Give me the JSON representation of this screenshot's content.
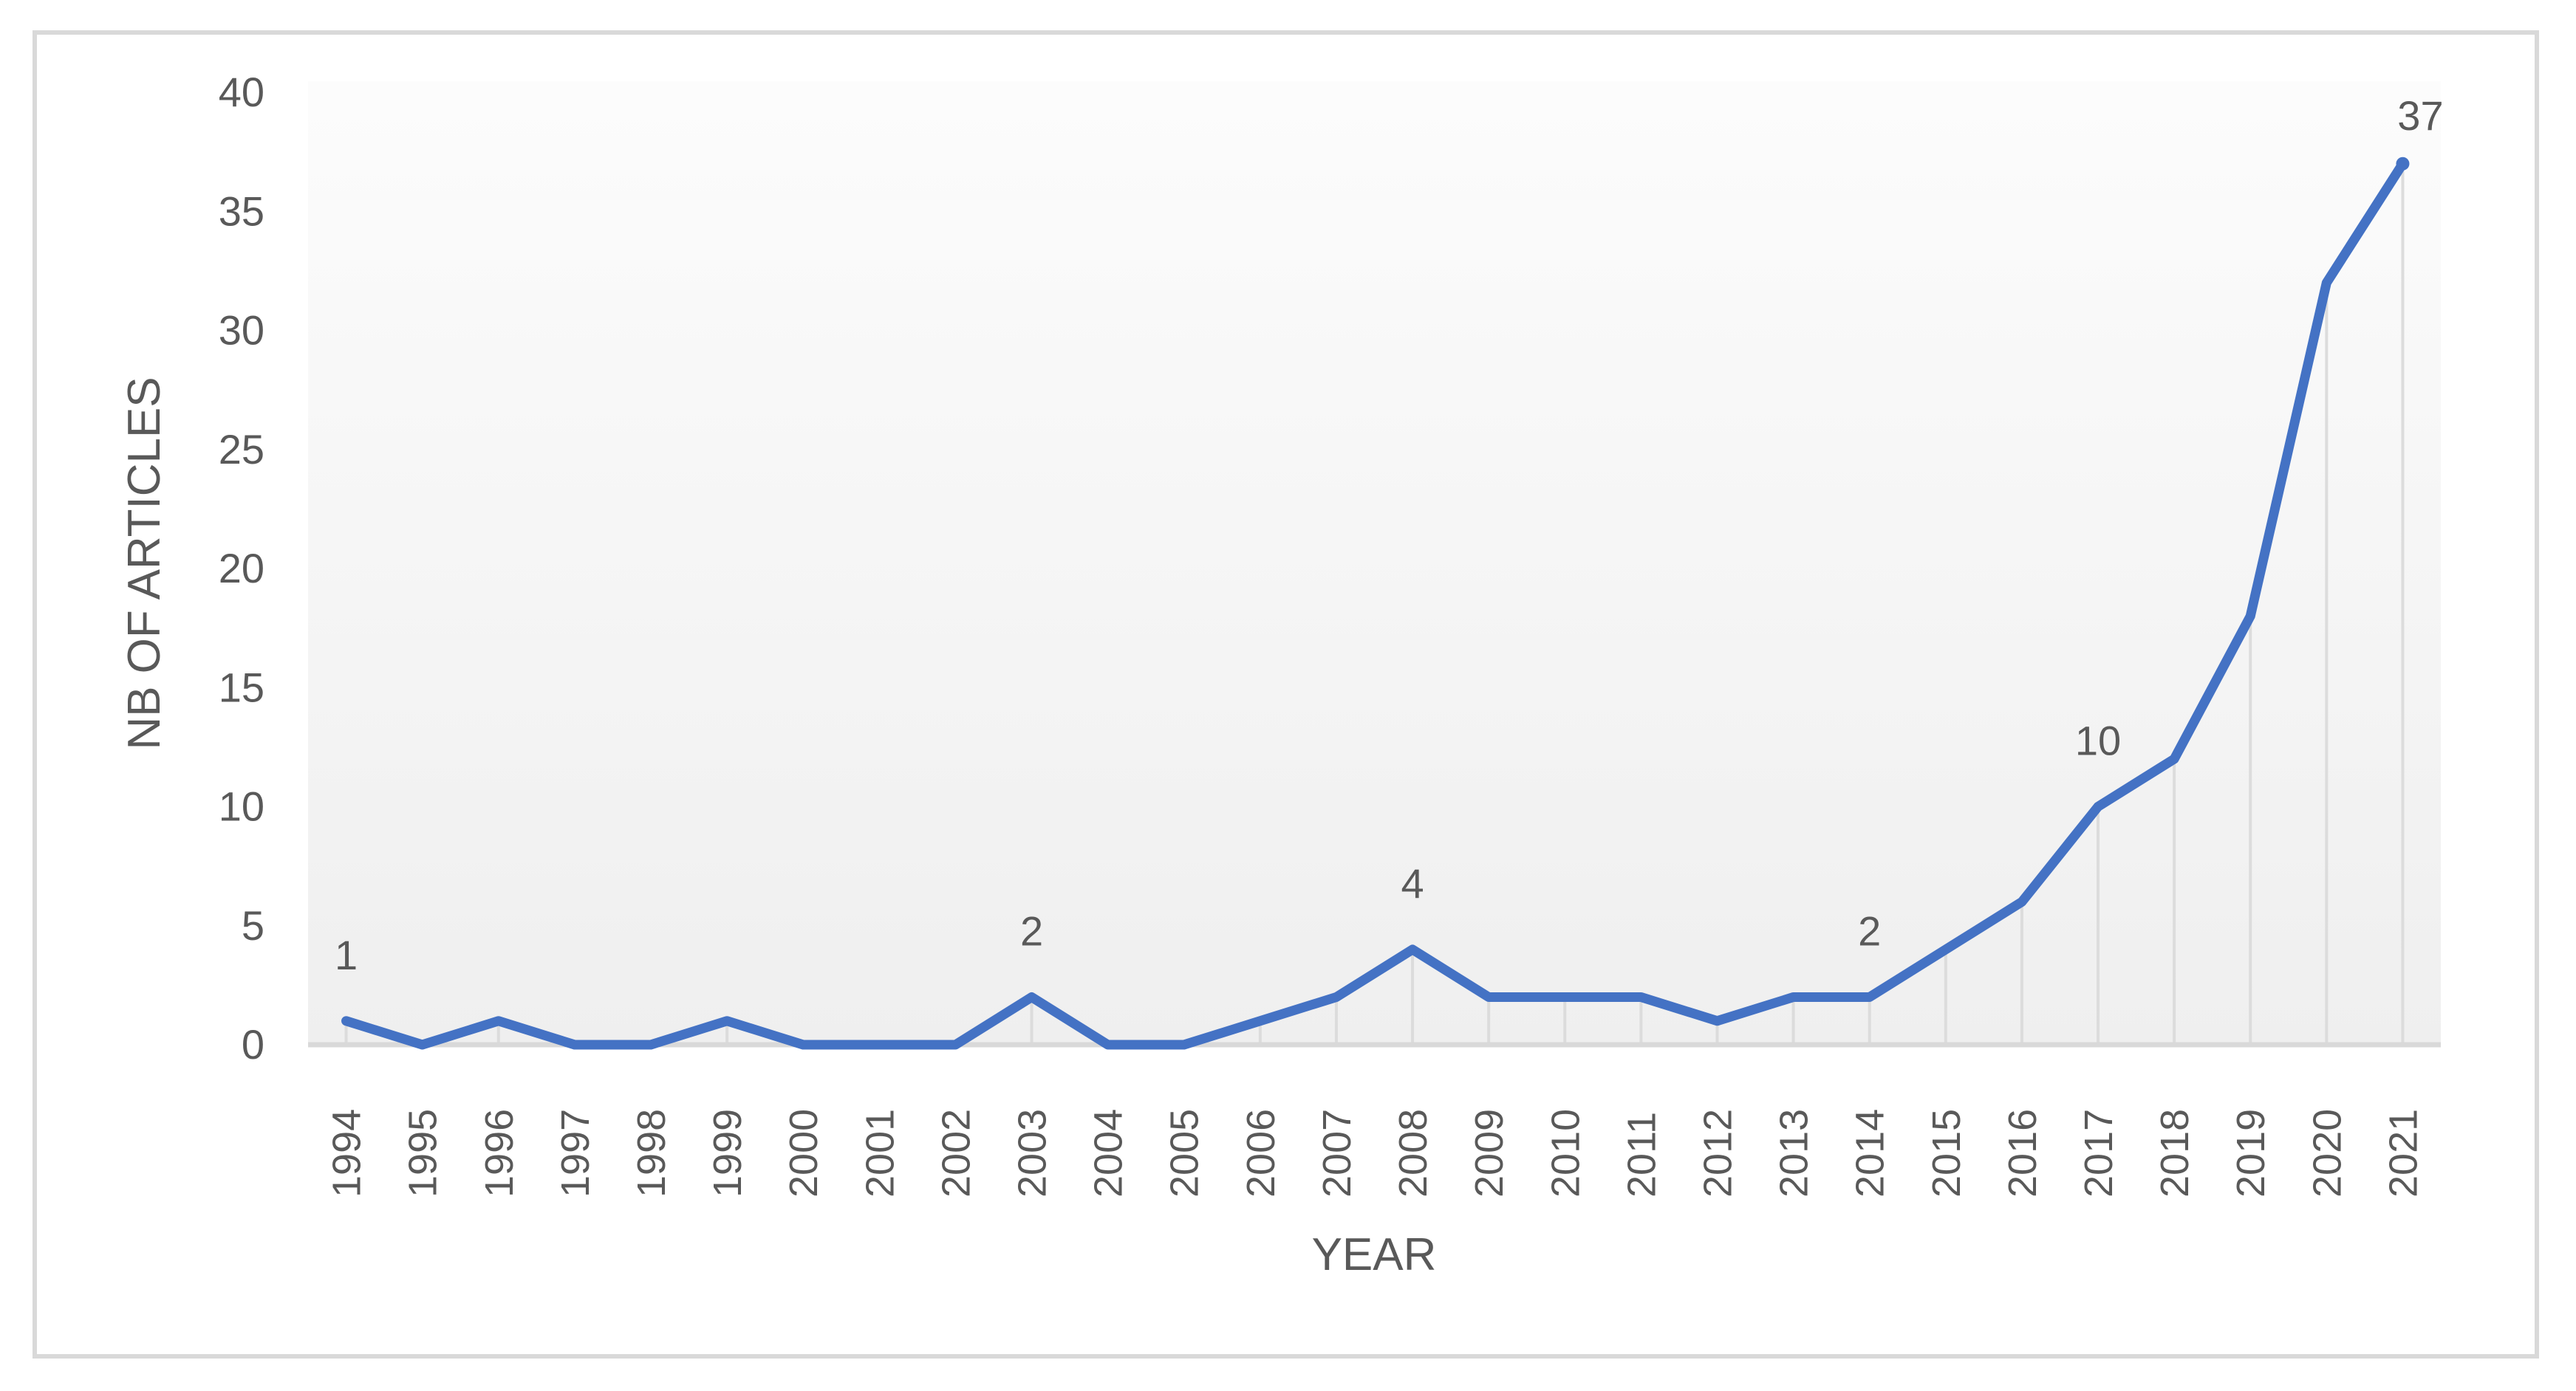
{
  "chart_data": {
    "type": "line",
    "title": "",
    "xlabel": "YEAR",
    "ylabel": "NB OF ARTICLES",
    "categories": [
      "1994",
      "1995",
      "1996",
      "1997",
      "1998",
      "1999",
      "2000",
      "2001",
      "2002",
      "2003",
      "2004",
      "2005",
      "2006",
      "2007",
      "2008",
      "2009",
      "2010",
      "2011",
      "2012",
      "2013",
      "2014",
      "2015",
      "2016",
      "2017",
      "2018",
      "2019",
      "2020",
      "2021"
    ],
    "series": [
      {
        "name": "NB OF ARTICLES",
        "values": [
          1,
          0,
          1,
          0,
          0,
          1,
          0,
          0,
          0,
          2,
          0,
          0,
          1,
          2,
          4,
          2,
          2,
          2,
          1,
          2,
          2,
          4,
          6,
          10,
          12,
          18,
          32,
          37
        ]
      }
    ],
    "point_labels": [
      {
        "category": "1994",
        "text": "1"
      },
      {
        "category": "2003",
        "text": "2"
      },
      {
        "category": "2008",
        "text": "4"
      },
      {
        "category": "2014",
        "text": "2"
      },
      {
        "category": "2017",
        "text": "10"
      },
      {
        "category": "2021",
        "text": "37"
      }
    ],
    "ylim": [
      0,
      40
    ],
    "yticks": [
      "0",
      "5",
      "10",
      "15",
      "20",
      "25",
      "30",
      "35",
      "40"
    ],
    "grid": "vertical droplines from each data point to category axis",
    "legend_position": "none",
    "colors": {
      "line": "#4472C4",
      "text": "#595959",
      "axis": "#D9D9D9",
      "dropline": "#DCDCDC",
      "plot_bg_top": "#FCFCFC",
      "plot_bg_bottom": "#EFEFEF",
      "page_bg": "#FFFFFF"
    }
  }
}
